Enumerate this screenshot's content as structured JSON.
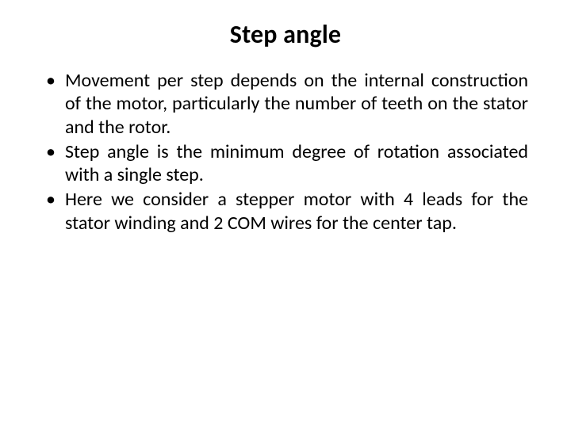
{
  "slide": {
    "title": "Step angle",
    "title_fontsize": 32,
    "title_fontweight": 700,
    "body_fontsize": 24,
    "text_color": "#000000",
    "background_color": "#ffffff",
    "bullets": [
      "Movement per step depends on the internal construction of the motor, particularly the number of teeth on the stator and the rotor.",
      "Step angle is the minimum degree of rotation associated with a single step.",
      "Here we consider a stepper motor  with 4 leads for the stator winding and 2 COM wires for the center tap."
    ]
  }
}
